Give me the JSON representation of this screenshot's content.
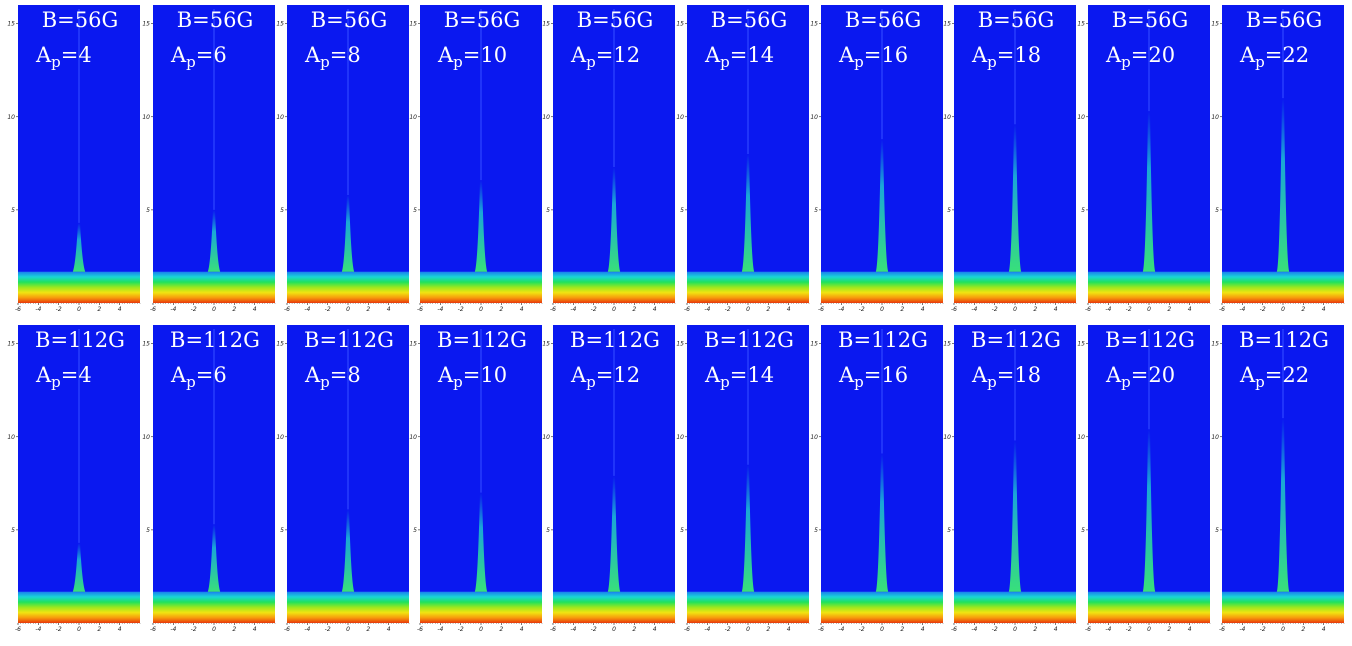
{
  "rows": [
    {
      "field_label": "B=56G",
      "panels": [
        {
          "amp_sym": "A",
          "amp_sub": "p",
          "amp_val": "=4",
          "peak_height": 4.3
        },
        {
          "amp_sym": "A",
          "amp_sub": "p",
          "amp_val": "=6",
          "peak_height": 5.0
        },
        {
          "amp_sym": "A",
          "amp_sub": "p",
          "amp_val": "=8",
          "peak_height": 5.8
        },
        {
          "amp_sym": "A",
          "amp_sub": "p",
          "amp_val": "=10",
          "peak_height": 6.6
        },
        {
          "amp_sym": "A",
          "amp_sub": "p",
          "amp_val": "=12",
          "peak_height": 7.3
        },
        {
          "amp_sym": "A",
          "amp_sub": "p",
          "amp_val": "=14",
          "peak_height": 8.0
        },
        {
          "amp_sym": "A",
          "amp_sub": "p",
          "amp_val": "=16",
          "peak_height": 8.8
        },
        {
          "amp_sym": "A",
          "amp_sub": "p",
          "amp_val": "=18",
          "peak_height": 9.6
        },
        {
          "amp_sym": "A",
          "amp_sub": "p",
          "amp_val": "=20",
          "peak_height": 10.3
        },
        {
          "amp_sym": "A",
          "amp_sub": "p",
          "amp_val": "=22",
          "peak_height": 11.0
        }
      ]
    },
    {
      "field_label": "B=112G",
      "panels": [
        {
          "amp_sym": "A",
          "amp_sub": "p",
          "amp_val": "=4",
          "peak_height": 4.3
        },
        {
          "amp_sym": "A",
          "amp_sub": "p",
          "amp_val": "=6",
          "peak_height": 5.3
        },
        {
          "amp_sym": "A",
          "amp_sub": "p",
          "amp_val": "=8",
          "peak_height": 6.1
        },
        {
          "amp_sym": "A",
          "amp_sub": "p",
          "amp_val": "=10",
          "peak_height": 7.0
        },
        {
          "amp_sym": "A",
          "amp_sub": "p",
          "amp_val": "=12",
          "peak_height": 7.9
        },
        {
          "amp_sym": "A",
          "amp_sub": "p",
          "amp_val": "=14",
          "peak_height": 8.5
        },
        {
          "amp_sym": "A",
          "amp_sub": "p",
          "amp_val": "=16",
          "peak_height": 9.1
        },
        {
          "amp_sym": "A",
          "amp_sub": "p",
          "amp_val": "=18",
          "peak_height": 9.8
        },
        {
          "amp_sym": "A",
          "amp_sub": "p",
          "amp_val": "=20",
          "peak_height": 10.4
        },
        {
          "amp_sym": "A",
          "amp_sub": "p",
          "amp_val": "=22",
          "peak_height": 11.0
        }
      ]
    }
  ],
  "axes": {
    "x_ticks": [
      "-6",
      "-4",
      "-2",
      "0",
      "2",
      "4"
    ],
    "y_ticks": [
      "5",
      "10",
      "15"
    ],
    "xlim": [
      -6,
      6
    ],
    "ylim": [
      0,
      16
    ]
  },
  "colors": {
    "background": "#0a18f0",
    "peak": "#38e07a",
    "gradient": [
      "#1a7ef0",
      "#19d6d6",
      "#20e25c",
      "#9be81e",
      "#f1e411",
      "#f79a0c",
      "#e8380b"
    ]
  }
}
